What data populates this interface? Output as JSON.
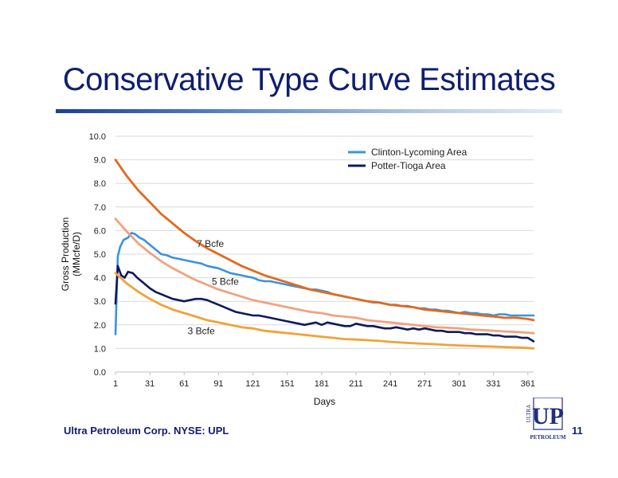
{
  "slide": {
    "title": "Conservative Type Curve Estimates",
    "footer": "Ultra Petroleum Corp. NYSE: UPL",
    "page_number": "11",
    "logo": {
      "mark": "UP",
      "side_text": "ULTRA",
      "bottom_text": "PETROLEUM",
      "color": "#1f2f7a"
    }
  },
  "chart_data": {
    "type": "line",
    "title": "",
    "xlabel": "Days",
    "ylabel": "Gross Production (MMcfe/D)",
    "ylabel_lines": [
      "Gross Production",
      "(MMcfe/D)"
    ],
    "xlim": [
      1,
      366
    ],
    "ylim": [
      0,
      10
    ],
    "x_ticks": [
      "1",
      "31",
      "61",
      "91",
      "121",
      "151",
      "181",
      "211",
      "241",
      "271",
      "301",
      "331",
      "361"
    ],
    "y_ticks": [
      "0.0",
      "1.0",
      "2.0",
      "3.0",
      "4.0",
      "5.0",
      "6.0",
      "7.0",
      "8.0",
      "9.0",
      "10.0"
    ],
    "grid": "horizontal",
    "legend_position": "top-right",
    "series": [
      {
        "name": "Clinton-Lycoming Area",
        "color": "#3b93db",
        "x": [
          1,
          3,
          5,
          8,
          12,
          15,
          18,
          22,
          26,
          31,
          36,
          41,
          46,
          51,
          56,
          61,
          66,
          71,
          76,
          81,
          86,
          91,
          96,
          101,
          106,
          111,
          116,
          121,
          126,
          131,
          136,
          141,
          146,
          151,
          156,
          161,
          166,
          171,
          176,
          181,
          186,
          191,
          196,
          201,
          206,
          211,
          216,
          221,
          226,
          231,
          236,
          241,
          246,
          251,
          256,
          261,
          266,
          271,
          276,
          281,
          286,
          291,
          296,
          301,
          306,
          311,
          316,
          321,
          326,
          331,
          336,
          341,
          346,
          351,
          356,
          361,
          366
        ],
        "y": [
          1.6,
          4.9,
          5.3,
          5.6,
          5.7,
          5.9,
          5.85,
          5.7,
          5.6,
          5.4,
          5.2,
          5.0,
          4.95,
          4.85,
          4.8,
          4.75,
          4.7,
          4.65,
          4.6,
          4.5,
          4.45,
          4.4,
          4.3,
          4.2,
          4.15,
          4.1,
          4.05,
          4.0,
          3.9,
          3.85,
          3.85,
          3.8,
          3.75,
          3.7,
          3.65,
          3.6,
          3.55,
          3.5,
          3.5,
          3.45,
          3.4,
          3.3,
          3.25,
          3.2,
          3.15,
          3.1,
          3.05,
          3.0,
          2.95,
          2.95,
          2.9,
          2.85,
          2.85,
          2.8,
          2.8,
          2.75,
          2.7,
          2.7,
          2.65,
          2.65,
          2.6,
          2.6,
          2.55,
          2.5,
          2.55,
          2.5,
          2.5,
          2.45,
          2.45,
          2.4,
          2.45,
          2.45,
          2.4,
          2.4,
          2.4,
          2.4,
          2.4
        ]
      },
      {
        "name": "Potter-Tioga Area",
        "color": "#0d1a5c",
        "x": [
          1,
          3,
          6,
          9,
          12,
          16,
          20,
          25,
          31,
          36,
          41,
          46,
          51,
          56,
          61,
          66,
          71,
          76,
          81,
          86,
          91,
          96,
          101,
          106,
          111,
          116,
          121,
          126,
          131,
          136,
          141,
          146,
          151,
          156,
          161,
          166,
          171,
          176,
          181,
          186,
          191,
          196,
          201,
          206,
          211,
          216,
          221,
          226,
          231,
          236,
          241,
          246,
          251,
          256,
          261,
          266,
          271,
          276,
          281,
          286,
          291,
          296,
          301,
          306,
          311,
          316,
          321,
          326,
          331,
          336,
          341,
          346,
          351,
          356,
          361,
          366
        ],
        "y": [
          2.9,
          4.5,
          4.1,
          4.0,
          4.25,
          4.2,
          4.0,
          3.8,
          3.55,
          3.4,
          3.3,
          3.2,
          3.1,
          3.05,
          3.0,
          3.05,
          3.1,
          3.1,
          3.05,
          2.95,
          2.85,
          2.75,
          2.65,
          2.55,
          2.5,
          2.45,
          2.4,
          2.4,
          2.35,
          2.3,
          2.25,
          2.2,
          2.15,
          2.1,
          2.05,
          2.0,
          2.05,
          2.1,
          2.0,
          2.1,
          2.05,
          2.0,
          1.95,
          1.95,
          2.05,
          2.0,
          1.95,
          1.95,
          1.9,
          1.85,
          1.85,
          1.9,
          1.85,
          1.8,
          1.85,
          1.8,
          1.85,
          1.8,
          1.75,
          1.75,
          1.7,
          1.7,
          1.7,
          1.65,
          1.65,
          1.6,
          1.6,
          1.6,
          1.55,
          1.55,
          1.5,
          1.5,
          1.5,
          1.45,
          1.45,
          1.3
        ]
      },
      {
        "label": "7 Bcfe",
        "color": "#e2691f",
        "x": [
          1,
          11,
          21,
          31,
          41,
          51,
          61,
          71,
          81,
          91,
          101,
          111,
          121,
          131,
          141,
          151,
          161,
          171,
          181,
          191,
          201,
          211,
          221,
          231,
          241,
          251,
          261,
          271,
          281,
          291,
          301,
          311,
          321,
          331,
          341,
          351,
          361,
          366
        ],
        "y": [
          9.0,
          8.3,
          7.7,
          7.2,
          6.7,
          6.3,
          5.9,
          5.55,
          5.25,
          5.0,
          4.75,
          4.5,
          4.3,
          4.1,
          3.95,
          3.8,
          3.65,
          3.5,
          3.4,
          3.3,
          3.2,
          3.1,
          3.0,
          2.95,
          2.85,
          2.8,
          2.75,
          2.65,
          2.6,
          2.55,
          2.5,
          2.45,
          2.4,
          2.35,
          2.3,
          2.3,
          2.25,
          2.2
        ],
        "label_at": [
          72,
          5.3
        ]
      },
      {
        "label": "5 Bcfe",
        "color": "#f1a27e",
        "x": [
          1,
          11,
          21,
          31,
          41,
          51,
          61,
          71,
          81,
          91,
          101,
          111,
          121,
          131,
          141,
          151,
          161,
          171,
          181,
          191,
          201,
          211,
          221,
          231,
          241,
          251,
          261,
          271,
          281,
          291,
          301,
          311,
          321,
          331,
          341,
          351,
          361,
          366
        ],
        "y": [
          6.5,
          5.95,
          5.45,
          5.05,
          4.7,
          4.4,
          4.15,
          3.9,
          3.7,
          3.5,
          3.35,
          3.2,
          3.05,
          2.95,
          2.85,
          2.75,
          2.65,
          2.55,
          2.5,
          2.4,
          2.35,
          2.3,
          2.2,
          2.15,
          2.1,
          2.05,
          2.0,
          1.95,
          1.9,
          1.88,
          1.85,
          1.8,
          1.78,
          1.75,
          1.72,
          1.7,
          1.67,
          1.65
        ],
        "label_at": [
          85,
          3.7
        ]
      },
      {
        "label": "3 Bcfe",
        "color": "#f0a23a",
        "x": [
          1,
          11,
          21,
          31,
          41,
          51,
          61,
          71,
          81,
          91,
          101,
          111,
          121,
          131,
          141,
          151,
          161,
          171,
          181,
          191,
          201,
          211,
          221,
          231,
          241,
          251,
          261,
          271,
          281,
          291,
          301,
          311,
          321,
          331,
          341,
          351,
          361,
          366
        ],
        "y": [
          4.2,
          3.75,
          3.4,
          3.1,
          2.85,
          2.65,
          2.5,
          2.35,
          2.2,
          2.1,
          2.0,
          1.9,
          1.85,
          1.75,
          1.7,
          1.65,
          1.6,
          1.55,
          1.5,
          1.45,
          1.4,
          1.38,
          1.35,
          1.32,
          1.28,
          1.25,
          1.22,
          1.2,
          1.18,
          1.15,
          1.13,
          1.11,
          1.09,
          1.08,
          1.06,
          1.04,
          1.02,
          1.0
        ],
        "label_at": [
          64,
          1.6
        ]
      }
    ]
  }
}
